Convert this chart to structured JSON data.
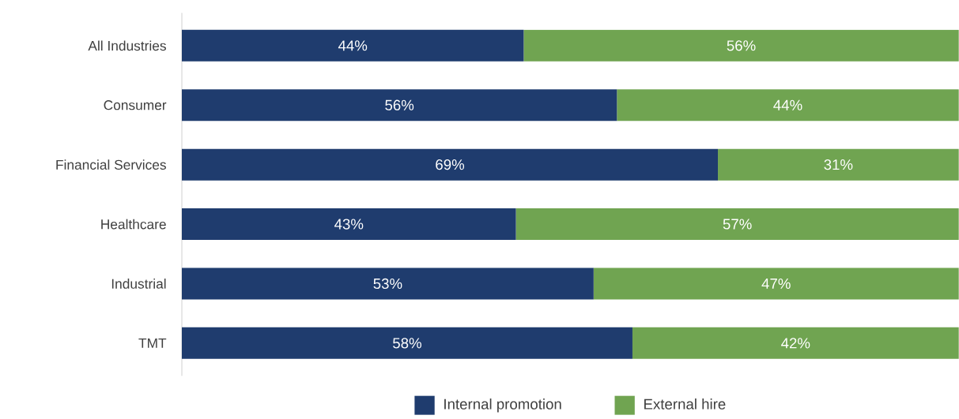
{
  "chart_data": {
    "type": "bar",
    "orientation": "horizontal",
    "stacked": true,
    "categories": [
      "All Industries",
      "Consumer",
      "Financial Services",
      "Healthcare",
      "Industrial",
      "TMT"
    ],
    "series": [
      {
        "name": "Internal promotion",
        "color": "#1f3c6e",
        "values": [
          44,
          56,
          69,
          43,
          53,
          58
        ],
        "value_labels": [
          "44%",
          "56%",
          "69%",
          "43%",
          "53%",
          "58%"
        ]
      },
      {
        "name": "External hire",
        "color": "#70a451",
        "values": [
          56,
          44,
          31,
          57,
          47,
          42
        ],
        "value_labels": [
          "56%",
          "44%",
          "31%",
          "57%",
          "47%",
          "42%"
        ]
      }
    ],
    "tick_labels": "y",
    "grid": false,
    "legend": "bottom"
  }
}
